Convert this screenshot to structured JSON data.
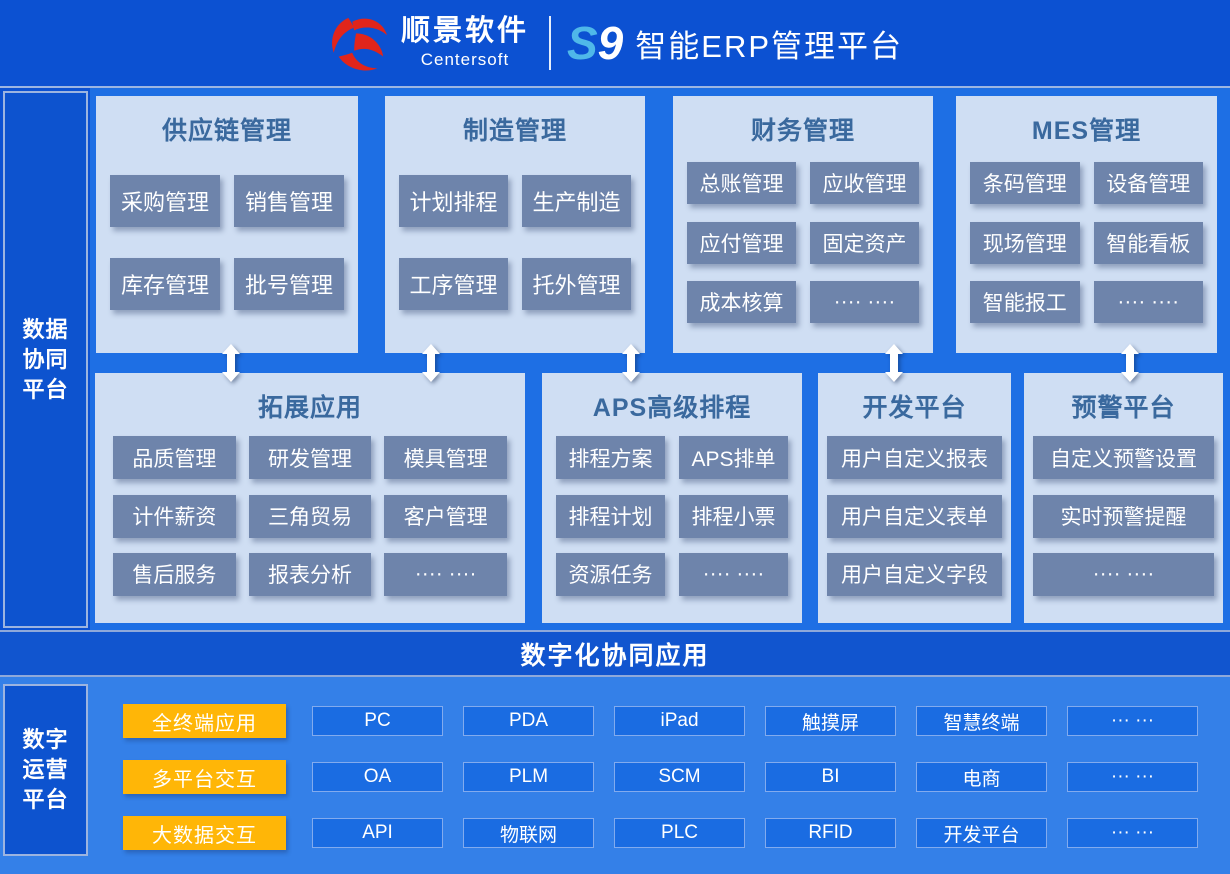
{
  "header": {
    "brand_cn": "顺景软件",
    "brand_en": "Centersoft",
    "mark_s": "S",
    "mark_9": "9",
    "title": "智能ERP管理平台"
  },
  "sidebar_top": {
    "lines": [
      "数据",
      "协同",
      "平台"
    ]
  },
  "sidebar_bottom": {
    "lines": [
      "数字",
      "运营",
      "平台"
    ]
  },
  "band": {
    "label": "数字化协同应用"
  },
  "panels": [
    {
      "title": "供应链管理",
      "cols": 2,
      "items": [
        "采购管理",
        "销售管理",
        "库存管理",
        "批号管理"
      ]
    },
    {
      "title": "制造管理",
      "cols": 2,
      "items": [
        "计划排程",
        "生产制造",
        "工序管理",
        "托外管理"
      ]
    },
    {
      "title": "财务管理",
      "cols": 2,
      "items": [
        "总账管理",
        "应收管理",
        "应付管理",
        "固定资产",
        "成本核算",
        "···· ····"
      ]
    },
    {
      "title": "MES管理",
      "cols": 2,
      "items": [
        "条码管理",
        "设备管理",
        "现场管理",
        "智能看板",
        "智能报工",
        "···· ····"
      ]
    },
    {
      "title": "拓展应用",
      "cols": 3,
      "items": [
        "品质管理",
        "研发管理",
        "模具管理",
        "计件薪资",
        "三角贸易",
        "客户管理",
        "售后服务",
        "报表分析",
        "···· ····"
      ]
    },
    {
      "title": "APS高级排程",
      "cols": 2,
      "items": [
        "排程方案",
        "APS排单",
        "排程计划",
        "排程小票",
        "资源任务",
        "···· ····"
      ]
    },
    {
      "title": "开发平台",
      "cols": 1,
      "items": [
        "用户自定义报表",
        "用户自定义表单",
        "用户自定义字段"
      ]
    },
    {
      "title": "预警平台",
      "cols": 1,
      "items": [
        "自定义预警设置",
        "实时预警提醒",
        "···· ····"
      ]
    }
  ],
  "bottom_rows": [
    {
      "tag": "全终端应用",
      "items": [
        "PC",
        "PDA",
        "iPad",
        "触摸屏",
        "智慧终端",
        "··· ···"
      ]
    },
    {
      "tag": "多平台交互",
      "items": [
        "OA",
        "PLM",
        "SCM",
        "BI",
        "电商",
        "··· ···"
      ]
    },
    {
      "tag": "大数据交互",
      "items": [
        "API",
        "物联网",
        "PLC",
        "RFID",
        "开发平台",
        "··· ···"
      ]
    }
  ],
  "colors": {
    "header_bg": "#0c51d2",
    "zone_top_bg": "#1e6fe4",
    "band_bg": "#1155cf",
    "zone_bottom_bg": "#3480e8",
    "sidebar_bg": "#0d53cf",
    "panel_bg": "#cfdef3",
    "panel_title": "#3a699e",
    "module_button": "#6e84ab",
    "tag_yellow": "#ffb607",
    "terminal_button": "#1a6ce2",
    "logo_red": "#e1251b",
    "mark_blue": "#4fb8e9"
  }
}
